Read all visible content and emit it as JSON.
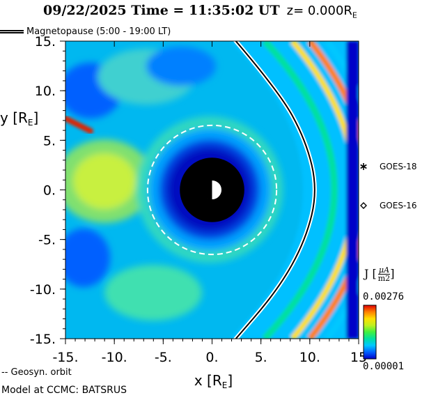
{
  "header": {
    "timestamp": "09/22/2025 Time = 11:35:02 UT",
    "z_prefix": "z= 0.000R",
    "z_sub": "E"
  },
  "magnetopause_legend": "Magnetopause (5:00 - 19:00 LT)",
  "satellites": [
    {
      "name": "GOES-18",
      "marker": "asterisk"
    },
    {
      "name": "GOES-16",
      "marker": "diamond"
    }
  ],
  "colorbar": {
    "label": "J",
    "unit_num": "μA",
    "unit_den": "m2",
    "max": "0.00276",
    "min": "0.00001",
    "colors": [
      "#0000c8",
      "#0060ff",
      "#00c8ff",
      "#00e0a0",
      "#40f040",
      "#c0f020",
      "#ffe000",
      "#ff8000",
      "#e00000"
    ]
  },
  "geosyn_legend": "-- Geosyn. orbit",
  "footer": "Model at CCMC: BATSRUS",
  "chart_data": {
    "type": "heatmap",
    "title": "09/22/2025 Time = 11:35:02 UT z= 0.000RE",
    "xlabel": "x [RE]",
    "ylabel": "y [RE]",
    "xlim": [
      15,
      -15
    ],
    "ylim": [
      -15,
      15
    ],
    "x_ticks": [
      -15,
      -10,
      -5,
      0,
      5,
      10,
      15
    ],
    "x_tick_labels": [
      "-15.",
      "-10.",
      "-5.",
      "0.",
      "5.",
      "10.",
      "15"
    ],
    "y_ticks": [
      15,
      10,
      5,
      0,
      -5,
      -10,
      -15
    ],
    "y_tick_labels": [
      "15.",
      "10.",
      "5.",
      "0.",
      "-5.",
      "-10.",
      "-15."
    ],
    "value_range": [
      1e-05,
      0.00276
    ],
    "inner_boundary_radius": 3.3,
    "geosynchronous_orbit_radius": 6.6,
    "magnetopause_subsolar_distance": 10.8,
    "magnetopause_points": [
      [
        2.0,
        15.5
      ],
      [
        6.8,
        10.0
      ],
      [
        9.6,
        5.0
      ],
      [
        10.8,
        0.0
      ],
      [
        9.6,
        -5.0
      ],
      [
        6.8,
        -10.0
      ],
      [
        2.0,
        -15.5
      ]
    ]
  }
}
